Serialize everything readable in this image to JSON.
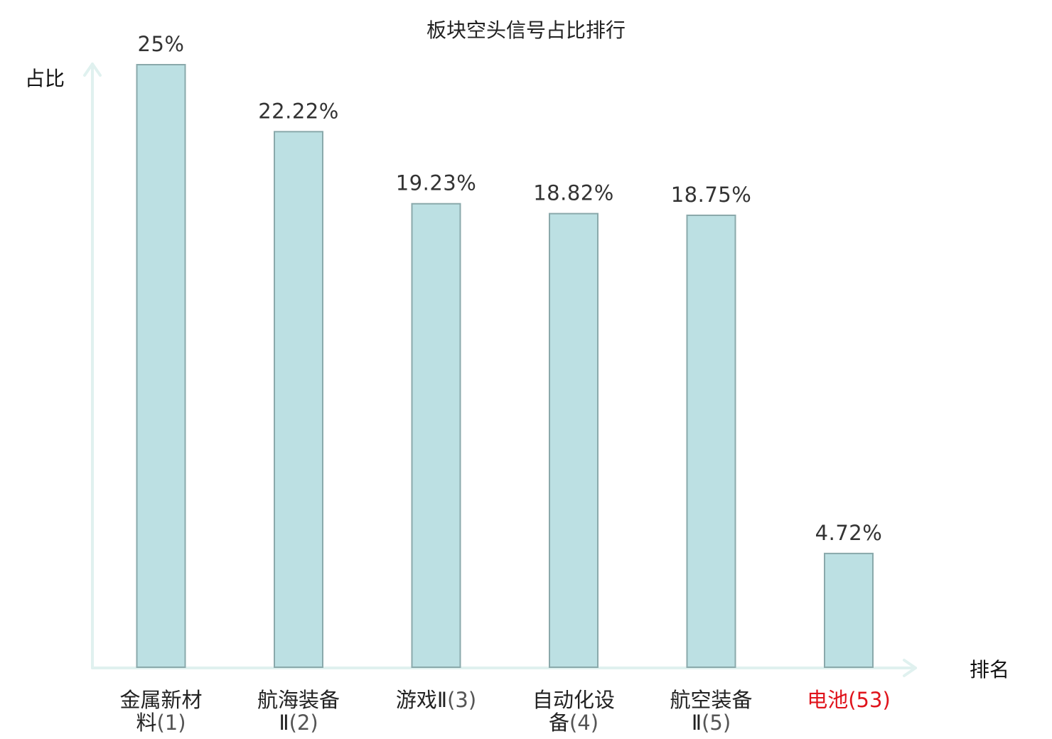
{
  "chart_data": {
    "type": "bar",
    "title": "板块空头信号占比排行",
    "ylabel": "占比",
    "xlabel": "排名",
    "ylim": [
      0,
      25
    ],
    "grid": false,
    "categories": [
      {
        "name_lines": [
          "金属新材",
          "料"
        ],
        "rank": "(1)"
      },
      {
        "name_lines": [
          "航海装备",
          "Ⅱ"
        ],
        "rank": "(2)"
      },
      {
        "name_lines": [
          "游戏Ⅱ"
        ],
        "rank": "(3)"
      },
      {
        "name_lines": [
          "自动化设",
          "备"
        ],
        "rank": "(4)"
      },
      {
        "name_lines": [
          "航空装备",
          "Ⅱ"
        ],
        "rank": "(5)"
      },
      {
        "name_lines": [
          "电池"
        ],
        "rank": "(53)"
      }
    ],
    "values": [
      25,
      22.22,
      19.23,
      18.82,
      18.75,
      4.72
    ],
    "value_labels": [
      "25%",
      "22.22%",
      "19.23%",
      "18.82%",
      "18.75%",
      "4.72%"
    ],
    "highlight_index": 5
  },
  "colors": {
    "bar_fill": "#bce0e3",
    "bar_stroke": "#8aa9ab",
    "axis": "#e0f1ef",
    "highlight": "#e0141c"
  }
}
